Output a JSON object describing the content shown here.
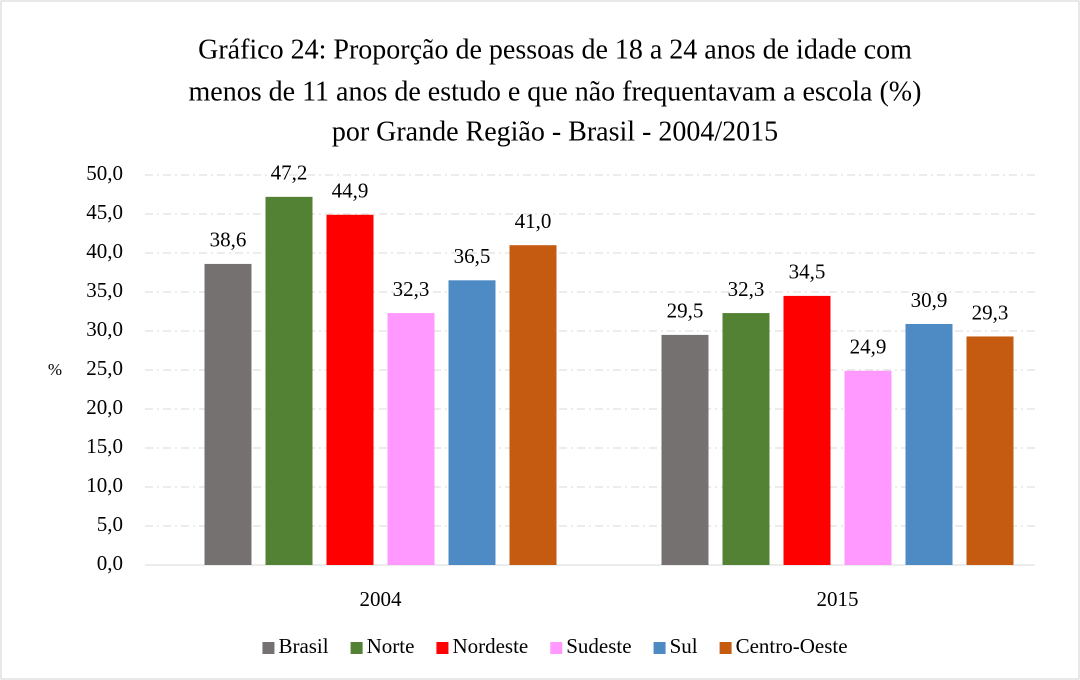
{
  "chart_data": {
    "type": "bar",
    "title": [
      "Gráfico 24: Proporção de pessoas de 18 a 24 anos de idade com",
      "menos de 11 anos de estudo e que não frequentavam a escola (%)",
      "por Grande Região - Brasil - 2004/2015"
    ],
    "y_label": "%",
    "categories": [
      "2004",
      "2015"
    ],
    "series": [
      {
        "name": "Brasil",
        "color": "#767171",
        "values": [
          38.6,
          29.5
        ],
        "value_labels": [
          "38,6",
          "29,5"
        ]
      },
      {
        "name": "Norte",
        "color": "#548235",
        "values": [
          47.2,
          32.3
        ],
        "value_labels": [
          "47,2",
          "32,3"
        ]
      },
      {
        "name": "Nordeste",
        "color": "#ff0000",
        "values": [
          44.9,
          34.5
        ],
        "value_labels": [
          "44,9",
          "34,5"
        ]
      },
      {
        "name": "Sudeste",
        "color": "#ff99ff",
        "values": [
          32.3,
          24.9
        ],
        "value_labels": [
          "32,3",
          "24,9"
        ]
      },
      {
        "name": "Sul",
        "color": "#4e8bc4",
        "values": [
          36.5,
          30.9
        ],
        "value_labels": [
          "36,5",
          "30,9"
        ]
      },
      {
        "name": "Centro-Oeste",
        "color": "#c55a11",
        "values": [
          41.0,
          29.3
        ],
        "value_labels": [
          "41,0",
          "29,3"
        ]
      }
    ],
    "ylim": [
      0,
      50
    ],
    "yticks": [
      {
        "value": 0,
        "label": "0,0"
      },
      {
        "value": 5,
        "label": "5,0"
      },
      {
        "value": 10,
        "label": "10,0"
      },
      {
        "value": 15,
        "label": "15,0"
      },
      {
        "value": 20,
        "label": "20,0"
      },
      {
        "value": 25,
        "label": "25,0"
      },
      {
        "value": 30,
        "label": "30,0"
      },
      {
        "value": 35,
        "label": "35,0"
      },
      {
        "value": 40,
        "label": "40,0"
      },
      {
        "value": 45,
        "label": "45,0"
      },
      {
        "value": 50,
        "label": "50,0"
      }
    ],
    "grid": true,
    "legend": "bottom"
  }
}
